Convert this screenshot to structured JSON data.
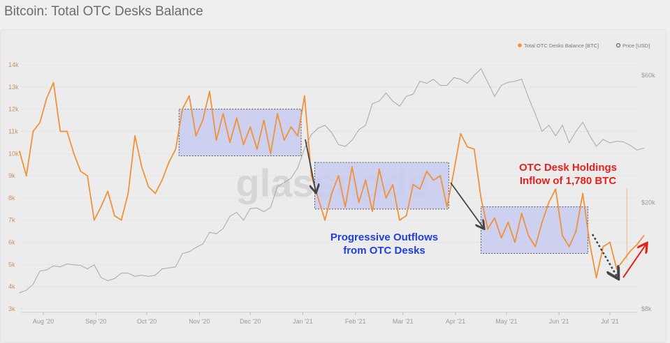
{
  "title": "Bitcoin: Total OTC Desks Balance",
  "chart_data": {
    "type": "line",
    "title": "Bitcoin: Total OTC Desks Balance",
    "watermark": "glassnode",
    "legend_position": "top-right",
    "grid": true,
    "x_tick_labels": [
      {
        "date": "2020-08-01",
        "label": "Aug '20"
      },
      {
        "date": "2020-09-01",
        "label": "Sep '20"
      },
      {
        "date": "2020-10-01",
        "label": "Oct '20"
      },
      {
        "date": "2020-11-01",
        "label": "Nov '20"
      },
      {
        "date": "2020-12-01",
        "label": "Dec '20"
      },
      {
        "date": "2021-01-01",
        "label": "Jan '21"
      },
      {
        "date": "2021-02-01",
        "label": "Feb '21"
      },
      {
        "date": "2021-03-01",
        "label": "Mar '21"
      },
      {
        "date": "2021-04-01",
        "label": "Apr '21"
      },
      {
        "date": "2021-05-01",
        "label": "May '21"
      },
      {
        "date": "2021-06-01",
        "label": "Jun '21"
      },
      {
        "date": "2021-07-01",
        "label": "Jul '21"
      }
    ],
    "y_left": {
      "range": [
        3000,
        14000
      ],
      "scale": "linear",
      "ticks": [
        3000,
        4000,
        5000,
        6000,
        7000,
        8000,
        9000,
        10000,
        11000,
        12000,
        13000,
        14000
      ],
      "tick_labels": [
        "3k",
        "4k",
        "5k",
        "6k",
        "7k",
        "8k",
        "9k",
        "10k",
        "11k",
        "12k",
        "13k",
        "14k"
      ]
    },
    "y_right": {
      "range": [
        8000,
        60000
      ],
      "scale": "log",
      "ticks": [
        8000,
        20000,
        60000
      ],
      "tick_labels": [
        "$8k",
        "$20k",
        "$60k"
      ]
    },
    "x": [
      "2020-07-18",
      "2020-07-22",
      "2020-07-26",
      "2020-07-30",
      "2020-08-03",
      "2020-08-07",
      "2020-08-11",
      "2020-08-15",
      "2020-08-19",
      "2020-08-23",
      "2020-08-27",
      "2020-08-31",
      "2020-09-04",
      "2020-09-08",
      "2020-09-12",
      "2020-09-16",
      "2020-09-20",
      "2020-09-24",
      "2020-09-28",
      "2020-10-02",
      "2020-10-06",
      "2020-10-10",
      "2020-10-14",
      "2020-10-18",
      "2020-10-22",
      "2020-10-26",
      "2020-10-30",
      "2020-11-03",
      "2020-11-07",
      "2020-11-11",
      "2020-11-15",
      "2020-11-19",
      "2020-11-23",
      "2020-11-27",
      "2020-12-01",
      "2020-12-05",
      "2020-12-09",
      "2020-12-13",
      "2020-12-17",
      "2020-12-21",
      "2020-12-25",
      "2020-12-29",
      "2021-01-02",
      "2021-01-06",
      "2021-01-10",
      "2021-01-14",
      "2021-01-18",
      "2021-01-22",
      "2021-01-26",
      "2021-01-30",
      "2021-02-03",
      "2021-02-07",
      "2021-02-11",
      "2021-02-15",
      "2021-02-19",
      "2021-02-23",
      "2021-02-27",
      "2021-03-03",
      "2021-03-07",
      "2021-03-11",
      "2021-03-15",
      "2021-03-19",
      "2021-03-23",
      "2021-03-27",
      "2021-03-31",
      "2021-04-04",
      "2021-04-08",
      "2021-04-12",
      "2021-04-16",
      "2021-04-20",
      "2021-04-24",
      "2021-04-28",
      "2021-05-02",
      "2021-05-06",
      "2021-05-10",
      "2021-05-14",
      "2021-05-18",
      "2021-05-22",
      "2021-05-26",
      "2021-05-30",
      "2021-06-03",
      "2021-06-07",
      "2021-06-11",
      "2021-06-15",
      "2021-06-19",
      "2021-06-23",
      "2021-06-27",
      "2021-07-01",
      "2021-07-05",
      "2021-07-09",
      "2021-07-13",
      "2021-07-17",
      "2021-07-21"
    ],
    "series": [
      {
        "name": "Total OTC Desks Balance [BTC]",
        "axis": "left",
        "color": "#f0923a",
        "values": [
          10100,
          9000,
          11000,
          11400,
          12500,
          13200,
          11000,
          11000,
          10000,
          9200,
          9000,
          7000,
          7600,
          8300,
          7200,
          7000,
          8200,
          10800,
          9400,
          8500,
          8200,
          8800,
          9600,
          10200,
          12000,
          12600,
          10800,
          11500,
          12800,
          10600,
          11800,
          10500,
          11600,
          10400,
          11200,
          10200,
          11500,
          10000,
          11800,
          10600,
          11200,
          10800,
          12600,
          9000,
          8000,
          7000,
          8200,
          9000,
          7600,
          9400,
          7800,
          8800,
          7400,
          9300,
          8000,
          8600,
          7000,
          7200,
          8600,
          8400,
          9200,
          8800,
          9000,
          7600,
          9200,
          10900,
          10300,
          10200,
          8000,
          6600,
          7100,
          6200,
          6900,
          6000,
          7300,
          6300,
          5800,
          6900,
          7800,
          8400,
          6300,
          5800,
          6500,
          8200,
          6000,
          4400,
          5800,
          6000,
          4800,
          5200,
          5600,
          5900,
          6300
        ]
      },
      {
        "name": "Price [USD]",
        "axis": "right",
        "color": "#a8a8a8",
        "values": [
          9200,
          9400,
          9900,
          11100,
          11200,
          11600,
          11500,
          11800,
          11700,
          11650,
          11300,
          11700,
          10500,
          10200,
          10400,
          10900,
          10900,
          10600,
          10700,
          10600,
          10700,
          11300,
          11400,
          11500,
          12900,
          13100,
          13600,
          14000,
          15500,
          15300,
          16000,
          17800,
          18400,
          17200,
          19000,
          19100,
          18500,
          19200,
          23000,
          23800,
          24700,
          27000,
          32000,
          36000,
          38000,
          39000,
          36600,
          33000,
          32500,
          34300,
          37500,
          39000,
          47000,
          48000,
          51500,
          48000,
          46000,
          50000,
          51000,
          57000,
          56000,
          58000,
          55000,
          55000,
          58800,
          58000,
          56000,
          60000,
          63500,
          56500,
          50000,
          55000,
          56500,
          57000,
          58000,
          49500,
          43000,
          37000,
          39000,
          35600,
          39000,
          33500,
          37000,
          40000,
          35800,
          32500,
          34500,
          33500,
          34000,
          33800,
          32800,
          31500,
          32000
        ]
      }
    ],
    "annotations": {
      "outflows_label": [
        "Progressive Outflows",
        "from OTC Desks"
      ],
      "inflow_label": [
        "OTC Desk Holdings",
        "Inflow of 1,780 BTC"
      ],
      "boxes": [
        {
          "from": "2020-10-20",
          "to": "2020-12-31",
          "low": 9900,
          "high": 12000
        },
        {
          "from": "2021-01-08",
          "to": "2021-03-28",
          "low": 7500,
          "high": 9600
        },
        {
          "from": "2021-04-16",
          "to": "2021-06-18",
          "low": 5500,
          "high": 7600
        }
      ]
    }
  }
}
